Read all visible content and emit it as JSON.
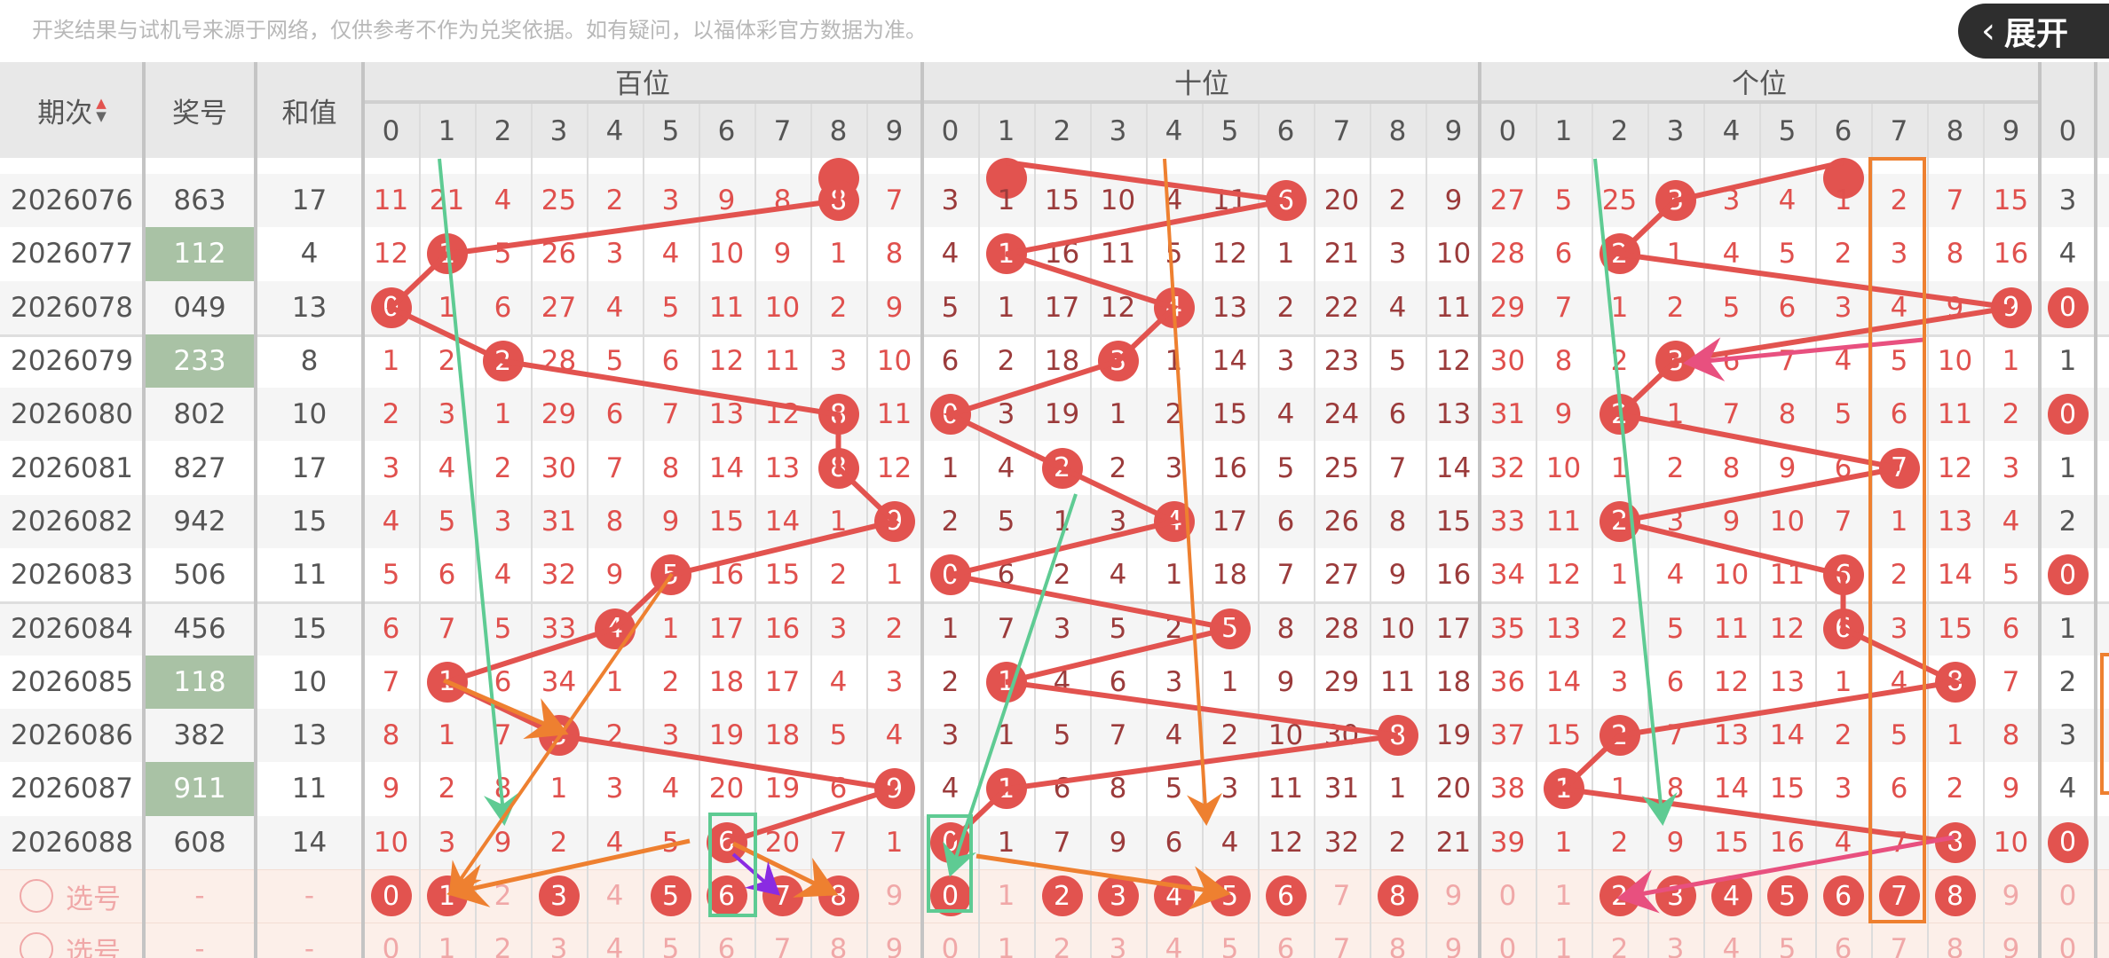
{
  "notice": "开奖结果与试机号来源于网络，仅供参考不作为兑奖依据。如有疑问，以福体彩官方数据为准。",
  "header": {
    "period": "期次",
    "number": "奖号",
    "sum": "和值",
    "sections": [
      "百位",
      "十位",
      "个位"
    ],
    "digits": [
      "0",
      "1",
      "2",
      "3",
      "4",
      "5",
      "6",
      "7",
      "8",
      "9"
    ],
    "extra_digit": "0",
    "sort_icon": "sort-up-down-icon"
  },
  "previous_row_hits": {
    "bai": 8,
    "shi": 1,
    "ge": 6
  },
  "rows": [
    {
      "period": "2026076",
      "number": "863",
      "sum": "17",
      "highlight": false,
      "bai": [
        "11",
        "21",
        "4",
        "25",
        "2",
        "3",
        "9",
        "8",
        "8",
        "7"
      ],
      "bai_hit": 8,
      "shi": [
        "3",
        "1",
        "15",
        "10",
        "4",
        "11",
        "6",
        "20",
        "2",
        "9"
      ],
      "shi_hit": 6,
      "ge": [
        "27",
        "5",
        "25",
        "3",
        "3",
        "4",
        "1",
        "2",
        "7",
        "15"
      ],
      "ge_hit": 3,
      "extra": "3",
      "extra_hit": false
    },
    {
      "period": "2026077",
      "number": "112",
      "sum": "4",
      "highlight": true,
      "bai": [
        "12",
        "1",
        "5",
        "26",
        "3",
        "4",
        "10",
        "9",
        "1",
        "8"
      ],
      "bai_hit": 1,
      "shi": [
        "4",
        "1",
        "16",
        "11",
        "5",
        "12",
        "1",
        "21",
        "3",
        "10"
      ],
      "shi_hit": 1,
      "ge": [
        "28",
        "6",
        "2",
        "1",
        "4",
        "5",
        "2",
        "3",
        "8",
        "16"
      ],
      "ge_hit": 2,
      "extra": "4",
      "extra_hit": false
    },
    {
      "period": "2026078",
      "number": "049",
      "sum": "13",
      "highlight": false,
      "bai": [
        "0",
        "1",
        "6",
        "27",
        "4",
        "5",
        "11",
        "10",
        "2",
        "9"
      ],
      "bai_hit": 0,
      "shi": [
        "5",
        "1",
        "17",
        "12",
        "4",
        "13",
        "2",
        "22",
        "4",
        "11"
      ],
      "shi_hit": 4,
      "ge": [
        "29",
        "7",
        "1",
        "2",
        "5",
        "6",
        "3",
        "4",
        "9",
        "9"
      ],
      "ge_hit": 9,
      "extra": "0",
      "extra_hit": true
    },
    {
      "period": "2026079",
      "number": "233",
      "sum": "8",
      "highlight": true,
      "bai": [
        "1",
        "2",
        "2",
        "28",
        "5",
        "6",
        "12",
        "11",
        "3",
        "10"
      ],
      "bai_hit": 2,
      "shi": [
        "6",
        "2",
        "18",
        "3",
        "1",
        "14",
        "3",
        "23",
        "5",
        "12"
      ],
      "shi_hit": 3,
      "ge": [
        "30",
        "8",
        "2",
        "3",
        "6",
        "7",
        "4",
        "5",
        "10",
        "1"
      ],
      "ge_hit": 3,
      "extra": "1",
      "extra_hit": false
    },
    {
      "period": "2026080",
      "number": "802",
      "sum": "10",
      "highlight": false,
      "bai": [
        "2",
        "3",
        "1",
        "29",
        "6",
        "7",
        "13",
        "12",
        "8",
        "11"
      ],
      "bai_hit": 8,
      "shi": [
        "0",
        "3",
        "19",
        "1",
        "2",
        "15",
        "4",
        "24",
        "6",
        "13"
      ],
      "shi_hit": 0,
      "ge": [
        "31",
        "9",
        "2",
        "1",
        "7",
        "8",
        "5",
        "6",
        "11",
        "2"
      ],
      "ge_hit": 2,
      "extra": "0",
      "extra_hit": true
    },
    {
      "period": "2026081",
      "number": "827",
      "sum": "17",
      "highlight": false,
      "bai": [
        "3",
        "4",
        "2",
        "30",
        "7",
        "8",
        "14",
        "13",
        "8",
        "12"
      ],
      "bai_hit": 8,
      "shi": [
        "1",
        "4",
        "2",
        "2",
        "3",
        "16",
        "5",
        "25",
        "7",
        "14"
      ],
      "shi_hit": 2,
      "ge": [
        "32",
        "10",
        "1",
        "2",
        "8",
        "9",
        "6",
        "7",
        "12",
        "3"
      ],
      "ge_hit": 7,
      "extra": "1",
      "extra_hit": false
    },
    {
      "period": "2026082",
      "number": "942",
      "sum": "15",
      "highlight": false,
      "bai": [
        "4",
        "5",
        "3",
        "31",
        "8",
        "9",
        "15",
        "14",
        "1",
        "9"
      ],
      "bai_hit": 9,
      "shi": [
        "2",
        "5",
        "1",
        "3",
        "4",
        "17",
        "6",
        "26",
        "8",
        "15"
      ],
      "shi_hit": 4,
      "ge": [
        "33",
        "11",
        "2",
        "3",
        "9",
        "10",
        "7",
        "1",
        "13",
        "4"
      ],
      "ge_hit": 2,
      "extra": "2",
      "extra_hit": false
    },
    {
      "period": "2026083",
      "number": "506",
      "sum": "11",
      "highlight": false,
      "bai": [
        "5",
        "6",
        "4",
        "32",
        "9",
        "5",
        "16",
        "15",
        "2",
        "1"
      ],
      "bai_hit": 5,
      "shi": [
        "0",
        "6",
        "2",
        "4",
        "1",
        "18",
        "7",
        "27",
        "9",
        "16"
      ],
      "shi_hit": 0,
      "ge": [
        "34",
        "12",
        "1",
        "4",
        "10",
        "11",
        "6",
        "2",
        "14",
        "5"
      ],
      "ge_hit": 6,
      "extra": "0",
      "extra_hit": true
    },
    {
      "period": "2026084",
      "number": "456",
      "sum": "15",
      "highlight": false,
      "bai": [
        "6",
        "7",
        "5",
        "33",
        "4",
        "1",
        "17",
        "16",
        "3",
        "2"
      ],
      "bai_hit": 4,
      "shi": [
        "1",
        "7",
        "3",
        "5",
        "2",
        "5",
        "8",
        "28",
        "10",
        "17"
      ],
      "shi_hit": 5,
      "ge": [
        "35",
        "13",
        "2",
        "5",
        "11",
        "12",
        "6",
        "3",
        "15",
        "6"
      ],
      "ge_hit": 6,
      "extra": "1",
      "extra_hit": false
    },
    {
      "period": "2026085",
      "number": "118",
      "sum": "10",
      "highlight": true,
      "bai": [
        "7",
        "1",
        "6",
        "34",
        "1",
        "2",
        "18",
        "17",
        "4",
        "3"
      ],
      "bai_hit": 1,
      "shi": [
        "2",
        "1",
        "4",
        "6",
        "3",
        "1",
        "9",
        "29",
        "11",
        "18"
      ],
      "shi_hit": 1,
      "ge": [
        "36",
        "14",
        "3",
        "6",
        "12",
        "13",
        "1",
        "4",
        "8",
        "7"
      ],
      "ge_hit": 8,
      "extra": "2",
      "extra_hit": false
    },
    {
      "period": "2026086",
      "number": "382",
      "sum": "13",
      "highlight": false,
      "bai": [
        "8",
        "1",
        "7",
        "3",
        "2",
        "3",
        "19",
        "18",
        "5",
        "4"
      ],
      "bai_hit": 3,
      "shi": [
        "3",
        "1",
        "5",
        "7",
        "4",
        "2",
        "10",
        "30",
        "8",
        "19"
      ],
      "shi_hit": 8,
      "ge": [
        "37",
        "15",
        "2",
        "7",
        "13",
        "14",
        "2",
        "5",
        "1",
        "8"
      ],
      "ge_hit": 2,
      "extra": "3",
      "extra_hit": false
    },
    {
      "period": "2026087",
      "number": "911",
      "sum": "11",
      "highlight": true,
      "bai": [
        "9",
        "2",
        "8",
        "1",
        "3",
        "4",
        "20",
        "19",
        "6",
        "9"
      ],
      "bai_hit": 9,
      "shi": [
        "4",
        "1",
        "6",
        "8",
        "5",
        "3",
        "11",
        "31",
        "1",
        "20"
      ],
      "shi_hit": 1,
      "ge": [
        "38",
        "1",
        "1",
        "8",
        "14",
        "15",
        "3",
        "6",
        "2",
        "9"
      ],
      "ge_hit": 1,
      "extra": "4",
      "extra_hit": false
    },
    {
      "period": "2026088",
      "number": "608",
      "sum": "14",
      "highlight": false,
      "bai": [
        "10",
        "3",
        "9",
        "2",
        "4",
        "5",
        "6",
        "20",
        "7",
        "1"
      ],
      "bai_hit": 6,
      "shi": [
        "0",
        "1",
        "7",
        "9",
        "6",
        "4",
        "12",
        "32",
        "2",
        "21"
      ],
      "shi_hit": 0,
      "ge": [
        "39",
        "1",
        "2",
        "9",
        "15",
        "16",
        "4",
        "7",
        "8",
        "10"
      ],
      "ge_hit": 8,
      "extra": "0",
      "extra_hit": true
    }
  ],
  "select_rows": [
    {
      "label": "选号",
      "number": "-",
      "sum": "-",
      "bai_selected": [
        0,
        1,
        3,
        5,
        6,
        7,
        8
      ],
      "shi_selected": [
        0,
        2,
        3,
        4,
        5,
        6,
        8
      ],
      "ge_selected": [
        2,
        3,
        4,
        5,
        6,
        7,
        8
      ],
      "extra_selected": false
    },
    {
      "label": "选号",
      "number": "-",
      "sum": "-",
      "bai_selected": [],
      "shi_selected": [],
      "ge_selected": [],
      "extra_selected": false
    }
  ],
  "expand_button": {
    "label": "展开",
    "icon": "chevron-left-icon"
  },
  "colors": {
    "hit_ball": "#e2534f",
    "miss_bai": "#e0504d",
    "miss_shi": "#9b3b3b",
    "miss_ge": "#e0504d",
    "highlight_number_bg": "#a9c2a5",
    "select_row_bg": "#fcefe9",
    "unselected_digit": "#f0a8a8",
    "annotation_green": "#5ecb93",
    "annotation_orange": "#ee8030",
    "annotation_pink": "#e8507f",
    "annotation_purple": "#8a2be2"
  }
}
